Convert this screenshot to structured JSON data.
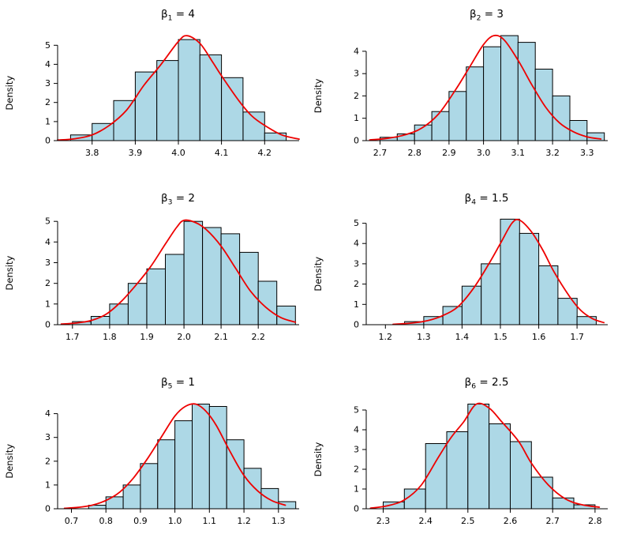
{
  "page": {
    "background": "#ffffff"
  },
  "colors": {
    "bar_fill": "#ADD8E6",
    "bar_stroke": "#000000",
    "curve": "#EE0000",
    "axis": "#000000",
    "text": "#000000"
  },
  "chart_data": [
    {
      "type": "histogram",
      "overlay": "density",
      "title": {
        "symbol": "β",
        "sub": "1",
        "rest": " = 4",
        "text": "β1 = 4"
      },
      "ylabel": "Density",
      "x_ticks": [
        3.8,
        3.9,
        4.0,
        4.1,
        4.2
      ],
      "x_labels": [
        "3.8",
        "3.9",
        "4.0",
        "4.1",
        "4.2"
      ],
      "y_ticks": [
        0,
        1,
        2,
        3,
        4,
        5
      ],
      "y_labels": [
        "0",
        "1",
        "2",
        "3",
        "4",
        "5"
      ],
      "xlim": [
        3.72,
        4.28
      ],
      "ylim": [
        0,
        5.8
      ],
      "bins": {
        "start": 3.75,
        "width": 0.05,
        "heights": [
          0.3,
          0.9,
          2.1,
          3.6,
          4.2,
          5.3,
          4.5,
          3.3,
          1.5,
          0.4
        ]
      },
      "density": [
        [
          3.72,
          0.03
        ],
        [
          3.76,
          0.1
        ],
        [
          3.8,
          0.3
        ],
        [
          3.84,
          0.8
        ],
        [
          3.88,
          1.6
        ],
        [
          3.92,
          2.9
        ],
        [
          3.96,
          4.0
        ],
        [
          4.0,
          5.2
        ],
        [
          4.02,
          5.5
        ],
        [
          4.05,
          5.1
        ],
        [
          4.08,
          4.1
        ],
        [
          4.1,
          3.4
        ],
        [
          4.14,
          2.1
        ],
        [
          4.17,
          1.3
        ],
        [
          4.2,
          0.8
        ],
        [
          4.24,
          0.3
        ],
        [
          4.28,
          0.08
        ]
      ]
    },
    {
      "type": "histogram",
      "overlay": "density",
      "title": {
        "symbol": "β",
        "sub": "2",
        "rest": " = 3",
        "text": "β2 = 3"
      },
      "ylabel": "Density",
      "x_ticks": [
        2.7,
        2.8,
        2.9,
        3.0,
        3.1,
        3.2,
        3.3
      ],
      "x_labels": [
        "2.7",
        "2.8",
        "2.9",
        "3.0",
        "3.1",
        "3.2",
        "3.3"
      ],
      "y_ticks": [
        0,
        1,
        2,
        3,
        4
      ],
      "y_labels": [
        "0",
        "1",
        "2",
        "3",
        "4"
      ],
      "xlim": [
        2.66,
        3.36
      ],
      "ylim": [
        0,
        4.95
      ],
      "bins": {
        "start": 2.7,
        "width": 0.05,
        "heights": [
          0.15,
          0.3,
          0.7,
          1.3,
          2.2,
          3.3,
          4.2,
          4.7,
          4.4,
          3.2,
          2.0,
          0.9,
          0.35
        ]
      },
      "density": [
        [
          2.67,
          0.03
        ],
        [
          2.72,
          0.1
        ],
        [
          2.77,
          0.25
        ],
        [
          2.82,
          0.55
        ],
        [
          2.87,
          1.2
        ],
        [
          2.92,
          2.3
        ],
        [
          2.96,
          3.3
        ],
        [
          3.0,
          4.3
        ],
        [
          3.03,
          4.7
        ],
        [
          3.06,
          4.5
        ],
        [
          3.1,
          3.6
        ],
        [
          3.14,
          2.5
        ],
        [
          3.18,
          1.5
        ],
        [
          3.22,
          0.8
        ],
        [
          3.26,
          0.4
        ],
        [
          3.3,
          0.17
        ],
        [
          3.34,
          0.07
        ]
      ]
    },
    {
      "type": "histogram",
      "overlay": "density",
      "title": {
        "symbol": "β",
        "sub": "3",
        "rest": " = 2",
        "text": "β3 = 2"
      },
      "ylabel": "Density",
      "x_ticks": [
        1.7,
        1.8,
        1.9,
        2.0,
        2.1,
        2.2
      ],
      "x_labels": [
        "1.7",
        "1.8",
        "1.9",
        "2.0",
        "2.1",
        "2.2"
      ],
      "y_ticks": [
        0,
        1,
        2,
        3,
        4,
        5
      ],
      "y_labels": [
        "0",
        "1",
        "2",
        "3",
        "4",
        "5"
      ],
      "xlim": [
        1.66,
        2.31
      ],
      "ylim": [
        0,
        5.35
      ],
      "bins": {
        "start": 1.7,
        "width": 0.05,
        "heights": [
          0.15,
          0.4,
          1.0,
          2.0,
          2.7,
          3.4,
          5.0,
          4.7,
          4.4,
          3.5,
          2.1,
          0.9
        ]
      },
      "density": [
        [
          1.67,
          0.03
        ],
        [
          1.71,
          0.08
        ],
        [
          1.75,
          0.2
        ],
        [
          1.79,
          0.5
        ],
        [
          1.83,
          1.1
        ],
        [
          1.87,
          1.9
        ],
        [
          1.91,
          2.8
        ],
        [
          1.95,
          3.9
        ],
        [
          1.98,
          4.7
        ],
        [
          2.0,
          5.05
        ],
        [
          2.03,
          4.95
        ],
        [
          2.06,
          4.6
        ],
        [
          2.1,
          3.8
        ],
        [
          2.14,
          2.7
        ],
        [
          2.18,
          1.6
        ],
        [
          2.22,
          0.85
        ],
        [
          2.26,
          0.35
        ],
        [
          2.3,
          0.12
        ]
      ]
    },
    {
      "type": "histogram",
      "overlay": "density",
      "title": {
        "symbol": "β",
        "sub": "4",
        "rest": " = 1.5",
        "text": "β4 = 1.5"
      },
      "ylabel": "Density",
      "x_ticks": [
        1.2,
        1.3,
        1.4,
        1.5,
        1.6,
        1.7
      ],
      "x_labels": [
        "1.2",
        "1.3",
        "1.4",
        "1.5",
        "1.6",
        "1.7"
      ],
      "y_ticks": [
        0,
        1,
        2,
        3,
        4,
        5
      ],
      "y_labels": [
        "0",
        "1",
        "2",
        "3",
        "4",
        "5"
      ],
      "xlim": [
        1.15,
        1.78
      ],
      "ylim": [
        0,
        5.45
      ],
      "bins": {
        "start": 1.25,
        "width": 0.05,
        "heights": [
          0.15,
          0.4,
          0.9,
          1.9,
          3.0,
          5.2,
          4.5,
          2.9,
          1.3,
          0.4
        ]
      },
      "density": [
        [
          1.22,
          0.02
        ],
        [
          1.27,
          0.08
        ],
        [
          1.31,
          0.2
        ],
        [
          1.35,
          0.45
        ],
        [
          1.39,
          0.9
        ],
        [
          1.43,
          1.8
        ],
        [
          1.47,
          3.0
        ],
        [
          1.5,
          4.0
        ],
        [
          1.53,
          5.0
        ],
        [
          1.55,
          5.15
        ],
        [
          1.58,
          4.6
        ],
        [
          1.61,
          3.7
        ],
        [
          1.64,
          2.6
        ],
        [
          1.68,
          1.4
        ],
        [
          1.71,
          0.7
        ],
        [
          1.74,
          0.3
        ],
        [
          1.77,
          0.1
        ]
      ]
    },
    {
      "type": "histogram",
      "overlay": "density",
      "title": {
        "symbol": "β",
        "sub": "5",
        "rest": " = 1",
        "text": "β5 = 1"
      },
      "ylabel": "Density",
      "x_ticks": [
        0.7,
        0.8,
        0.9,
        1.0,
        1.1,
        1.2,
        1.3
      ],
      "x_labels": [
        "0.7",
        "0.8",
        "0.9",
        "1.0",
        "1.1",
        "1.2",
        "1.3"
      ],
      "y_ticks": [
        0,
        1,
        2,
        3,
        4
      ],
      "y_labels": [
        "0",
        "1",
        "2",
        "3",
        "4"
      ],
      "xlim": [
        0.66,
        1.36
      ],
      "ylim": [
        0,
        4.65
      ],
      "bins": {
        "start": 0.75,
        "width": 0.05,
        "heights": [
          0.15,
          0.5,
          1.0,
          1.9,
          2.9,
          3.7,
          4.4,
          4.3,
          2.9,
          1.7,
          0.85,
          0.3
        ]
      },
      "density": [
        [
          0.68,
          0.02
        ],
        [
          0.72,
          0.06
        ],
        [
          0.76,
          0.15
        ],
        [
          0.8,
          0.35
        ],
        [
          0.84,
          0.7
        ],
        [
          0.88,
          1.3
        ],
        [
          0.92,
          2.1
        ],
        [
          0.96,
          3.0
        ],
        [
          1.0,
          3.9
        ],
        [
          1.03,
          4.3
        ],
        [
          1.06,
          4.4
        ],
        [
          1.09,
          4.1
        ],
        [
          1.12,
          3.5
        ],
        [
          1.16,
          2.4
        ],
        [
          1.2,
          1.4
        ],
        [
          1.24,
          0.75
        ],
        [
          1.28,
          0.35
        ],
        [
          1.32,
          0.15
        ]
      ]
    },
    {
      "type": "histogram",
      "overlay": "density",
      "title": {
        "symbol": "β",
        "sub": "6",
        "rest": " = 2.5",
        "text": "β6 = 2.5"
      },
      "ylabel": "Density",
      "x_ticks": [
        2.3,
        2.4,
        2.5,
        2.6,
        2.7,
        2.8
      ],
      "x_labels": [
        "2.3",
        "2.4",
        "2.5",
        "2.6",
        "2.7",
        "2.8"
      ],
      "y_ticks": [
        0,
        1,
        2,
        3,
        4,
        5
      ],
      "y_labels": [
        "0",
        "1",
        "2",
        "3",
        "4",
        "5"
      ],
      "xlim": [
        2.26,
        2.83
      ],
      "ylim": [
        0,
        5.6
      ],
      "bins": {
        "start": 2.3,
        "width": 0.05,
        "heights": [
          0.35,
          1.0,
          3.3,
          3.9,
          5.3,
          4.3,
          3.4,
          1.6,
          0.55,
          0.2
        ]
      },
      "density": [
        [
          2.27,
          0.03
        ],
        [
          2.31,
          0.15
        ],
        [
          2.35,
          0.45
        ],
        [
          2.39,
          1.2
        ],
        [
          2.43,
          2.6
        ],
        [
          2.46,
          3.6
        ],
        [
          2.49,
          4.4
        ],
        [
          2.52,
          5.3
        ],
        [
          2.55,
          5.1
        ],
        [
          2.58,
          4.4
        ],
        [
          2.62,
          3.4
        ],
        [
          2.65,
          2.3
        ],
        [
          2.69,
          1.2
        ],
        [
          2.73,
          0.5
        ],
        [
          2.77,
          0.2
        ],
        [
          2.81,
          0.08
        ]
      ]
    }
  ]
}
